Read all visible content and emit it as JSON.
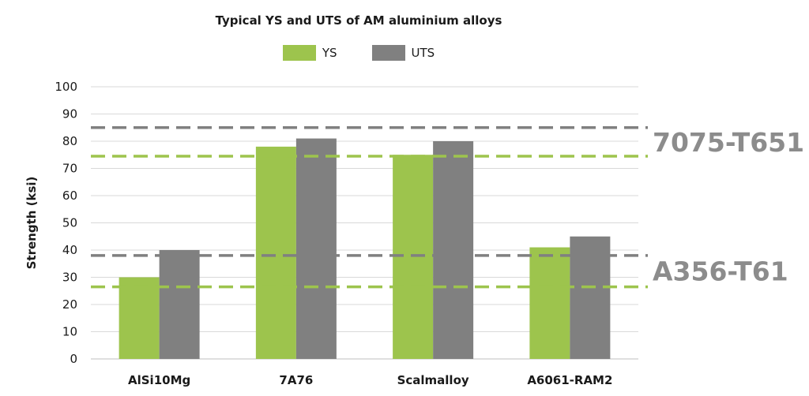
{
  "chart_data": {
    "type": "bar",
    "title": "Typical YS and UTS of AM aluminium alloys",
    "ylabel": "Strength (ksi)",
    "xlabel": "",
    "ylim": [
      0,
      100
    ],
    "yticks": [
      0,
      10,
      20,
      30,
      40,
      50,
      60,
      70,
      80,
      90,
      100
    ],
    "categories": [
      "AlSi10Mg",
      "7A76",
      "Scalmalloy",
      "A6061-RAM2"
    ],
    "series": [
      {
        "name": "YS",
        "color": "#9dc44d",
        "values": [
          30,
          78,
          75,
          41
        ]
      },
      {
        "name": "UTS",
        "color": "#808080",
        "values": [
          40,
          81,
          80,
          45
        ]
      }
    ],
    "reference_lines": [
      {
        "label": "7075-T651",
        "uts": 85,
        "ys": 74.5
      },
      {
        "label": "A356-T61",
        "uts": 38,
        "ys": 26.5
      }
    ],
    "grid": true,
    "legend": "top"
  }
}
